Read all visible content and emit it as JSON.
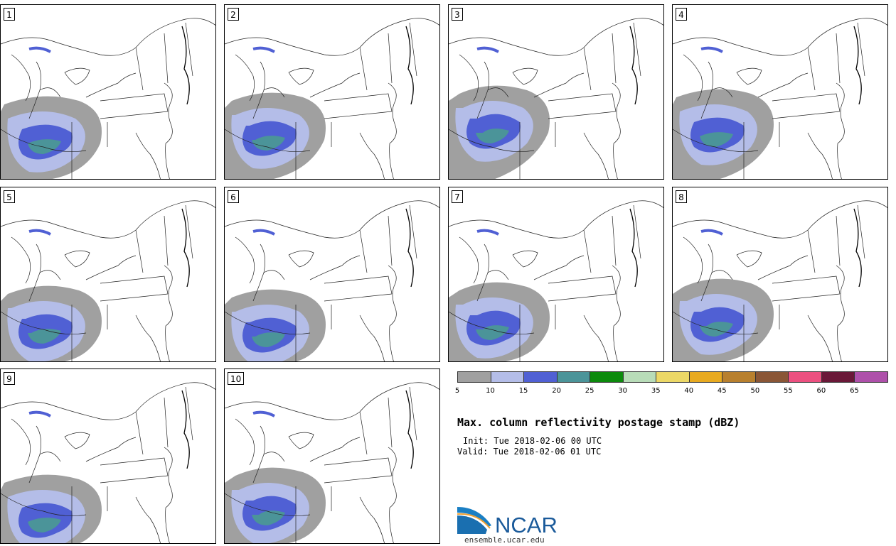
{
  "panels": [
    {
      "label": "1"
    },
    {
      "label": "2"
    },
    {
      "label": "3"
    },
    {
      "label": "4"
    },
    {
      "label": "5"
    },
    {
      "label": "6"
    },
    {
      "label": "7"
    },
    {
      "label": "8"
    },
    {
      "label": "9"
    },
    {
      "label": "10"
    }
  ],
  "colorbar": {
    "colors": [
      "#a0a0a0",
      "#b4bde8",
      "#5060d4",
      "#4b9499",
      "#0c8a0c",
      "#b8dcb8",
      "#ecd867",
      "#e8aa20",
      "#b8802e",
      "#8a5636",
      "#ec5080",
      "#6a1838",
      "#ae50aa"
    ],
    "ticks": [
      "5",
      "10",
      "15",
      "20",
      "25",
      "30",
      "35",
      "40",
      "45",
      "50",
      "55",
      "60",
      "65"
    ]
  },
  "title": "Max. column reflectivity postage stamp (dBZ)",
  "init": "Init: Tue 2018-02-06 00 UTC",
  "valid": "Valid: Tue 2018-02-06 01 UTC",
  "logo": {
    "text": "NCAR",
    "url": "ensemble.ucar.edu"
  }
}
